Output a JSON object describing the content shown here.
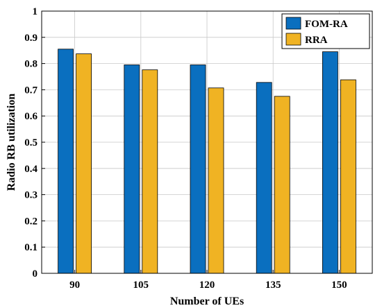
{
  "chart_data": {
    "type": "bar",
    "categories": [
      "90",
      "105",
      "120",
      "135",
      "150"
    ],
    "series": [
      {
        "name": "FOM-RA",
        "values": [
          0.855,
          0.795,
          0.795,
          0.728,
          0.845
        ],
        "color": "#0a6fbf"
      },
      {
        "name": "RRA",
        "values": [
          0.837,
          0.776,
          0.707,
          0.675,
          0.738
        ],
        "color": "#f0b323"
      }
    ],
    "xlabel": "Number of UEs",
    "ylabel": "Radio RB utilization",
    "ylim": [
      0,
      1
    ],
    "yticks": [
      "0",
      "0.1",
      "0.2",
      "0.3",
      "0.4",
      "0.5",
      "0.6",
      "0.7",
      "0.8",
      "0.9",
      "1"
    ],
    "grid": true,
    "legend_position": "top-right"
  }
}
